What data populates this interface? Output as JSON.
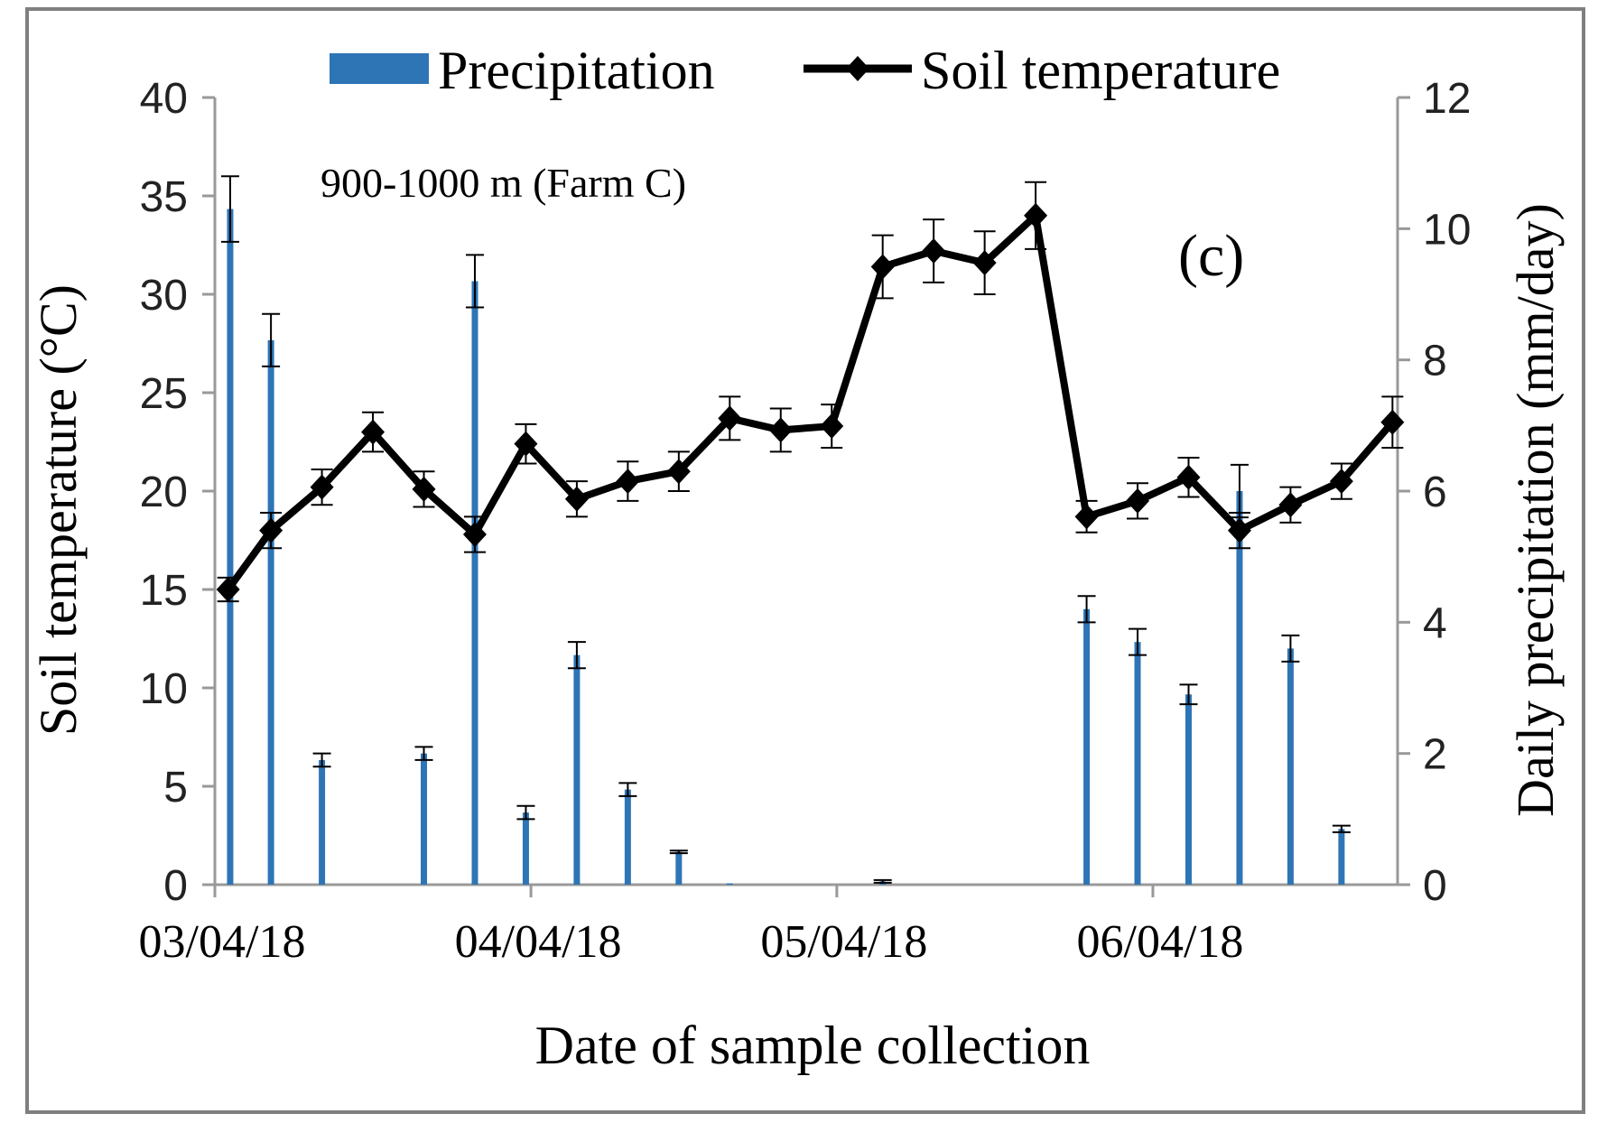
{
  "chart_data": {
    "type": "bar+line",
    "panel_label": "(c)",
    "annotation": "900-1000 m (Farm C)",
    "xlabel": "Date of sample collection",
    "ylabel_left": "Soil temperature (°C)",
    "ylabel_right": "Daily precipitation (mm/day)",
    "x_tick_labels": [
      "03/04/18",
      "04/04/18",
      "05/04/18",
      "06/04/18"
    ],
    "x_tick_days": [
      0,
      31,
      61,
      92
    ],
    "xlim_days": [
      0,
      116
    ],
    "y_left": {
      "min": 0,
      "max": 40,
      "step": 5,
      "ticks": [
        "0",
        "5",
        "10",
        "15",
        "20",
        "25",
        "30",
        "35",
        "40"
      ]
    },
    "y_right": {
      "min": 0,
      "max": 12,
      "step": 2,
      "ticks": [
        "0",
        "2",
        "4",
        "6",
        "8",
        "10",
        "12"
      ]
    },
    "legend": {
      "position": "top",
      "entries": [
        "Precipitation",
        "Soil temperature"
      ]
    },
    "series": [
      {
        "name": "Soil temperature",
        "kind": "line",
        "axis": "left",
        "color": "#000000",
        "x_days": [
          1.3,
          5.5,
          10.5,
          15.5,
          20.5,
          25.5,
          30.5,
          35.5,
          40.5,
          45.5,
          50.5,
          55.5,
          60.5,
          65.5,
          70.5,
          75.5,
          80.5,
          85.5,
          90.5,
          95.5,
          100.5,
          105.5,
          110.5,
          115.5
        ],
        "values": [
          15.0,
          18.0,
          20.2,
          23.0,
          20.1,
          17.8,
          22.4,
          19.6,
          20.5,
          21.0,
          23.7,
          23.1,
          23.3,
          31.4,
          32.2,
          31.6,
          34.0,
          18.7,
          19.5,
          20.7,
          18.0,
          19.3,
          20.5,
          23.5
        ],
        "error": [
          0.6,
          0.9,
          0.9,
          1.0,
          0.9,
          0.9,
          1.0,
          0.9,
          1.0,
          1.0,
          1.1,
          1.1,
          1.1,
          1.6,
          1.6,
          1.6,
          1.7,
          0.8,
          0.9,
          1.0,
          0.9,
          0.9,
          0.9,
          1.3
        ]
      },
      {
        "name": "Precipitation",
        "kind": "bar",
        "axis": "right",
        "color": "#2e75b6",
        "x_days": [
          1.5,
          5.5,
          10.5,
          20.5,
          25.5,
          30.5,
          35.5,
          40.5,
          45.5,
          50.5,
          65.5,
          85.5,
          90.5,
          95.5,
          100.5,
          105.5,
          110.5
        ],
        "values": [
          10.3,
          8.3,
          1.9,
          2.0,
          9.2,
          1.1,
          3.5,
          1.45,
          0.5,
          0.02,
          0.05,
          4.2,
          3.7,
          2.9,
          6.0,
          3.6,
          0.85
        ],
        "error": [
          0.5,
          0.4,
          0.1,
          0.1,
          0.4,
          0.1,
          0.2,
          0.1,
          0.02,
          0.0,
          0.02,
          0.2,
          0.2,
          0.15,
          0.4,
          0.2,
          0.05
        ]
      }
    ]
  }
}
